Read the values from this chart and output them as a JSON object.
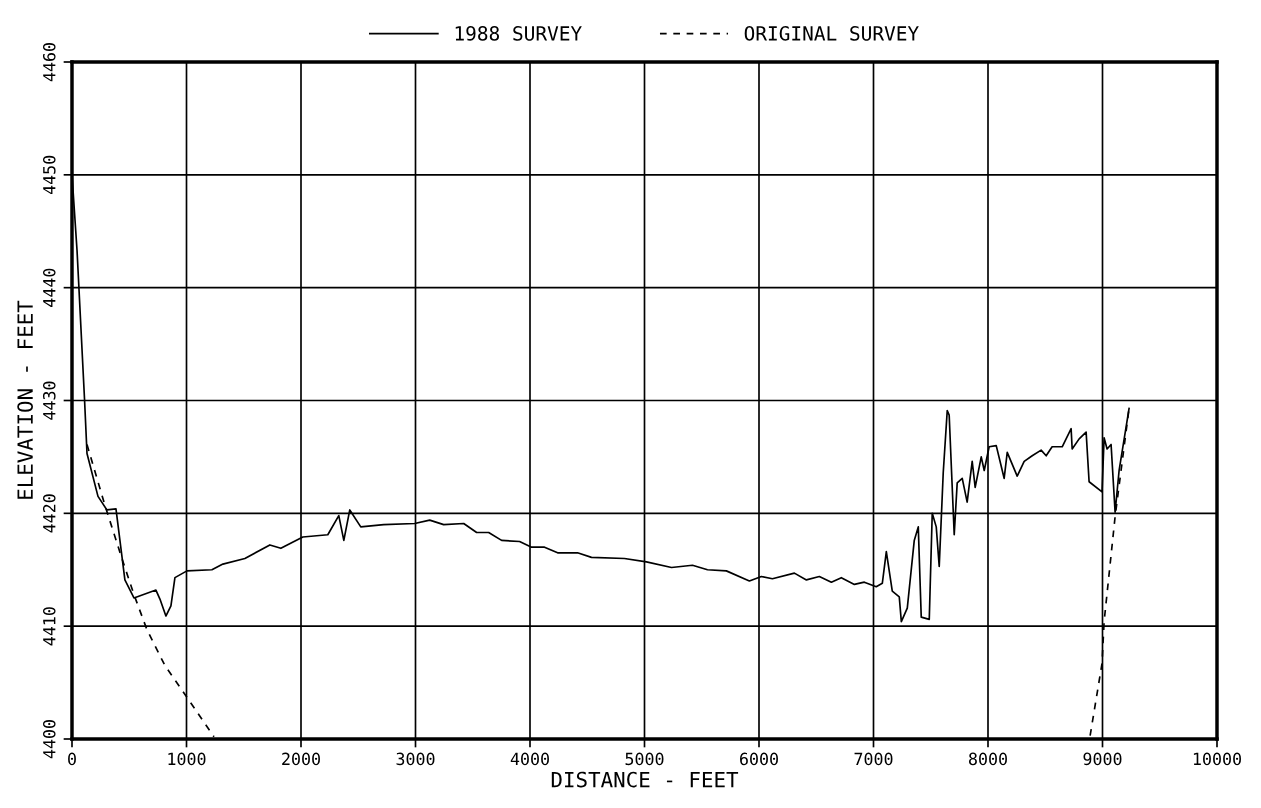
{
  "chart_data": {
    "type": "line",
    "xlabel": "DISTANCE - FEET",
    "ylabel": "ELEVATION - FEET",
    "xlim": [
      0,
      10000
    ],
    "xticks": [
      0,
      1000,
      2000,
      3000,
      4000,
      5000,
      6000,
      7000,
      8000,
      9000,
      10000
    ],
    "ylim": [
      4400,
      4460
    ],
    "yticks": [
      4400,
      4410,
      4420,
      4430,
      4440,
      4450,
      4460
    ],
    "grid": true,
    "legend": "top",
    "series": [
      {
        "name": "1988 SURVEY",
        "color": "#000000",
        "line_style": "solid",
        "x": [
          0,
          44,
          109,
          131,
          227,
          305,
          384,
          462,
          541,
          733,
          768,
          820,
          864,
          899,
          1004,
          1222,
          1318,
          1510,
          1728,
          1824,
          2016,
          2234,
          2330,
          2374,
          2426,
          2522,
          2722,
          2993,
          3124,
          3246,
          3421,
          3534,
          3639,
          3752,
          3909,
          4014,
          4127,
          4241,
          4415,
          4537,
          4825,
          5017,
          5236,
          5419,
          5550,
          5715,
          5916,
          6021,
          6117,
          6309,
          6414,
          6527,
          6632,
          6719,
          6833,
          6920,
          7024,
          7077,
          7112,
          7164,
          7225,
          7243,
          7295,
          7356,
          7391,
          7417,
          7487,
          7513,
          7548,
          7574,
          7609,
          7644,
          7661,
          7705,
          7731,
          7775,
          7818,
          7862,
          7888,
          7941,
          7967,
          8010,
          8072,
          8115,
          8141,
          8168,
          8255,
          8316,
          8386,
          8464,
          8508,
          8560,
          8648,
          8726,
          8735,
          8796,
          8857,
          8883,
          8996,
          9014,
          9040,
          9075,
          9110,
          9145,
          9232
        ],
        "values": [
          4450,
          4443.3,
          4430.2,
          4425.3,
          4421.5,
          4420.3,
          4420.4,
          4414.1,
          4412.5,
          4413.2,
          4412.4,
          4410.9,
          4411.8,
          4414.3,
          4414.9,
          4415.0,
          4415.5,
          4416.0,
          4417.2,
          4416.9,
          4417.9,
          4418.1,
          4419.8,
          4417.6,
          4420.3,
          4418.8,
          4419.0,
          4419.1,
          4419.4,
          4419.0,
          4419.1,
          4418.3,
          4418.3,
          4417.6,
          4417.5,
          4417.0,
          4417.0,
          4416.5,
          4416.5,
          4416.1,
          4416.0,
          4415.7,
          4415.2,
          4415.4,
          4415.0,
          4414.9,
          4414.0,
          4414.4,
          4414.2,
          4414.7,
          4414.1,
          4414.4,
          4413.9,
          4414.3,
          4413.7,
          4413.9,
          4413.5,
          4413.8,
          4416.6,
          4413.1,
          4412.6,
          4410.4,
          4411.6,
          4417.6,
          4418.8,
          4410.8,
          4410.6,
          4420.0,
          4418.8,
          4415.3,
          4423.6,
          4429.1,
          4428.7,
          4418.1,
          4422.7,
          4423.1,
          4421.0,
          4424.6,
          4422.3,
          4425.0,
          4423.8,
          4425.9,
          4426.0,
          4424.2,
          4423.1,
          4425.4,
          4423.3,
          4424.6,
          4425.1,
          4425.6,
          4425.1,
          4425.9,
          4425.9,
          4427.5,
          4425.7,
          4426.6,
          4427.2,
          4422.8,
          4421.9,
          4426.7,
          4425.7,
          4426.1,
          4420.1,
          4423.8,
          4429.3
        ]
      },
      {
        "name": "ORIGINAL SURVEY",
        "color": "#000000",
        "line_style": "dashed",
        "x": [
          131,
          288,
          436,
          541,
          654,
          812,
          1004,
          1240,
          null,
          8892,
          8996,
          9014,
          9110,
          9232
        ],
        "values": [
          4426.1,
          4420.7,
          4416.0,
          4412.8,
          4409.7,
          4406.5,
          4403.7,
          4400.2,
          null,
          4400.3,
          4406.7,
          4410.4,
          4419.7,
          4429.3
        ]
      }
    ]
  }
}
